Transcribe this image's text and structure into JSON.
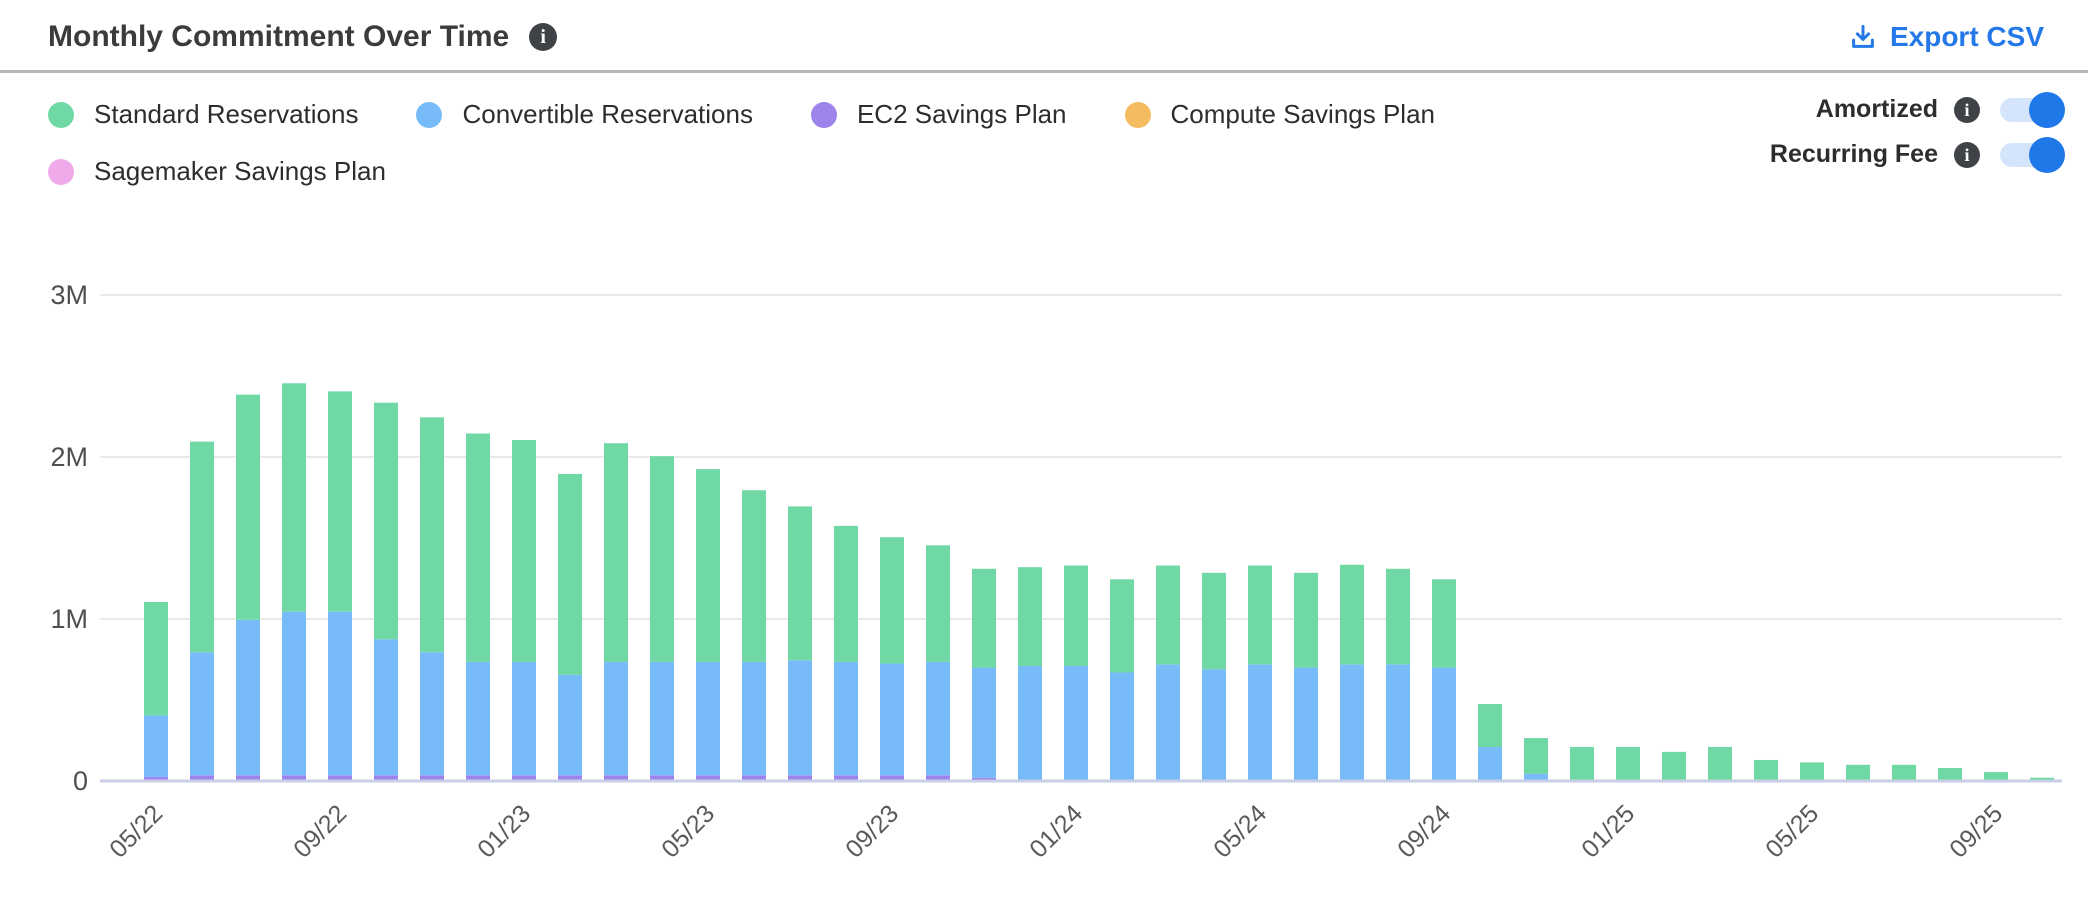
{
  "header": {
    "title": "Monthly Commitment Over Time",
    "export_label": "Export CSV"
  },
  "controls": {
    "toggles": [
      {
        "label": "Amortized",
        "state": "on"
      },
      {
        "label": "Recurring Fee",
        "state": "on"
      }
    ]
  },
  "colors": {
    "accent_blue": "#2478e8",
    "toggle_track": "#d4e5fb",
    "toggle_knob": "#1f78e8",
    "info_badge": "#3f4246",
    "gridline": "#e9e9e9",
    "axis_line": "#c9cfe6",
    "tick_text": "#5a5a5a"
  },
  "chart_data": {
    "type": "bar",
    "stacked": true,
    "grid": true,
    "legend_position": "top-left",
    "title": "Monthly Commitment Over Time",
    "xlabel": "",
    "ylabel": "",
    "ylim": [
      0,
      3.3
    ],
    "y_unit": "M",
    "y_ticks": [
      "3M",
      "2M",
      "1M",
      "0"
    ],
    "y_tick_values": [
      3,
      2,
      1,
      0
    ],
    "categories": [
      "05/22",
      "06/22",
      "07/22",
      "08/22",
      "09/22",
      "10/22",
      "11/22",
      "12/22",
      "01/23",
      "02/23",
      "03/23",
      "04/23",
      "05/23",
      "06/23",
      "07/23",
      "08/23",
      "09/23",
      "10/23",
      "11/23",
      "12/23",
      "01/24",
      "02/24",
      "03/24",
      "04/24",
      "05/24",
      "06/24",
      "07/24",
      "08/24",
      "09/24",
      "10/24",
      "11/24",
      "12/24",
      "01/25",
      "02/25",
      "03/25",
      "04/25",
      "05/25",
      "06/25",
      "07/25",
      "08/25",
      "09/25",
      "10/25"
    ],
    "x_tick_labels": [
      "05/22",
      "09/22",
      "01/23",
      "05/23",
      "09/23",
      "01/24",
      "05/24",
      "09/24",
      "01/25",
      "05/25",
      "09/25"
    ],
    "x_tick_every": 4,
    "values_unit": "millions",
    "series": [
      {
        "name": "Standard Reservations",
        "color": "#70d8a5",
        "values": [
          0.7,
          1.3,
          1.39,
          1.41,
          1.36,
          1.46,
          1.45,
          1.41,
          1.37,
          1.24,
          1.35,
          1.27,
          1.19,
          1.06,
          0.95,
          0.84,
          0.78,
          0.72,
          0.61,
          0.61,
          0.62,
          0.575,
          0.61,
          0.595,
          0.61,
          0.585,
          0.615,
          0.59,
          0.545,
          0.265,
          0.22,
          0.21,
          0.21,
          0.18,
          0.21,
          0.13,
          0.115,
          0.1,
          0.1,
          0.08,
          0.055,
          0.02
        ]
      },
      {
        "name": "Convertible Reservations",
        "color": "#77bcf8",
        "values": [
          0.38,
          0.76,
          0.96,
          1.01,
          1.01,
          0.84,
          0.76,
          0.7,
          0.7,
          0.62,
          0.7,
          0.7,
          0.7,
          0.7,
          0.71,
          0.7,
          0.69,
          0.7,
          0.68,
          0.71,
          0.71,
          0.67,
          0.72,
          0.69,
          0.72,
          0.7,
          0.72,
          0.72,
          0.7,
          0.21,
          0.045,
          0,
          0,
          0,
          0,
          0,
          0,
          0,
          0,
          0,
          0,
          0
        ]
      },
      {
        "name": "EC2 Savings Plan",
        "color": "#9d83ea",
        "values": [
          0.02,
          0.03,
          0.03,
          0.03,
          0.03,
          0.03,
          0.03,
          0.03,
          0.03,
          0.03,
          0.03,
          0.03,
          0.03,
          0.03,
          0.03,
          0.03,
          0.03,
          0.03,
          0.02,
          0,
          0,
          0,
          0,
          0,
          0,
          0,
          0,
          0,
          0,
          0,
          0,
          0,
          0,
          0,
          0,
          0,
          0,
          0,
          0,
          0,
          0,
          0
        ]
      },
      {
        "name": "Compute Savings Plan",
        "color": "#f5bb61",
        "values": [
          0,
          0,
          0,
          0,
          0,
          0,
          0,
          0,
          0,
          0,
          0,
          0,
          0,
          0,
          0,
          0,
          0,
          0,
          0,
          0,
          0,
          0,
          0,
          0,
          0,
          0,
          0,
          0,
          0,
          0,
          0,
          0,
          0,
          0,
          0,
          0,
          0,
          0,
          0,
          0,
          0,
          0
        ]
      },
      {
        "name": "Sagemaker Savings Plan",
        "color": "#f0a9e9",
        "values": [
          0.005,
          0.005,
          0.005,
          0.005,
          0.005,
          0.005,
          0.005,
          0.005,
          0.005,
          0.005,
          0.005,
          0.005,
          0.005,
          0.005,
          0.005,
          0.005,
          0.005,
          0.005,
          0,
          0,
          0,
          0,
          0,
          0,
          0,
          0,
          0,
          0,
          0,
          0,
          0,
          0,
          0,
          0,
          0,
          0,
          0,
          0,
          0,
          0,
          0,
          0
        ]
      }
    ]
  }
}
